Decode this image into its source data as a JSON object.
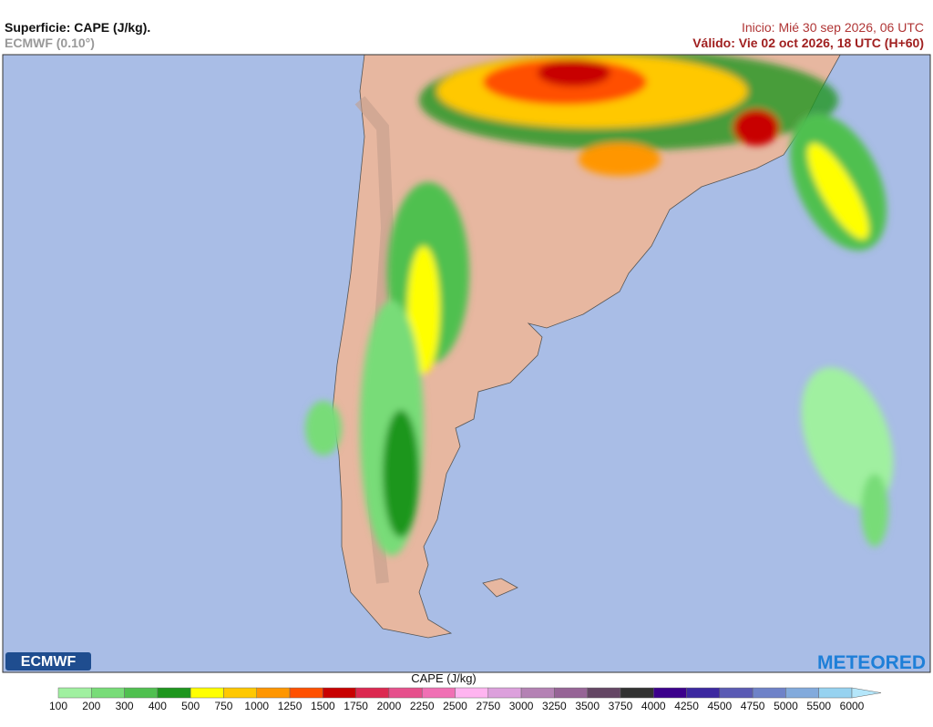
{
  "header": {
    "title": "Superficie: CAPE (J/kg).",
    "model": "ECMWF (0.10°)",
    "init": "Inicio: Mié 30 sep 2026, 06 UTC",
    "valid": "Válido: Vie 02 oct 2026, 18 UTC (H+60)"
  },
  "legend": {
    "title": "CAPE (J/kg)",
    "ticks": [
      100,
      200,
      300,
      400,
      500,
      750,
      1000,
      1250,
      1500,
      1750,
      2000,
      2250,
      2500,
      2750,
      3000,
      3250,
      3500,
      3750,
      4000,
      4250,
      4500,
      4750,
      5000,
      5500,
      6000
    ],
    "colors": [
      "#a0f0a0",
      "#78dc78",
      "#50c050",
      "#1e961e",
      "#ffff00",
      "#ffc800",
      "#ff9600",
      "#ff5000",
      "#c80000",
      "#dc2850",
      "#e6508c",
      "#f070b4",
      "#ffb4f0",
      "#dca0dc",
      "#b482b4",
      "#966496",
      "#644664",
      "#323232",
      "#3c008c",
      "#3c28a0",
      "#5a5ab4",
      "#6e82c8",
      "#82aadc",
      "#96d2f0"
    ],
    "arrow_color": "#b4e6fa"
  },
  "logos": {
    "left": "ECMWF",
    "right": "METEORED"
  }
}
